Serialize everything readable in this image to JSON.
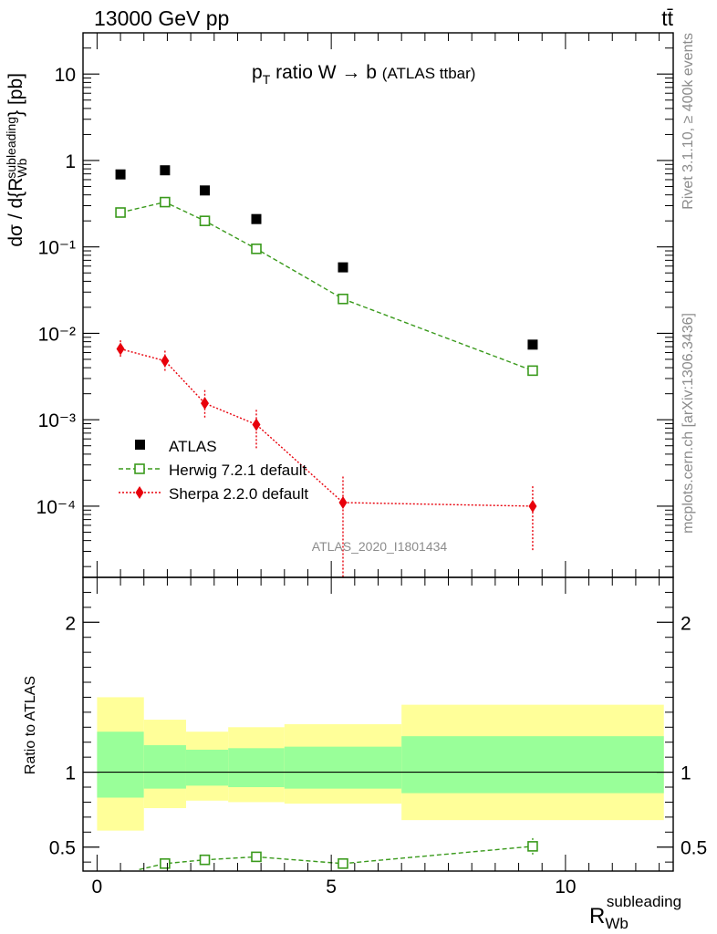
{
  "header": {
    "left": "13000 GeV pp",
    "right": "tt̄"
  },
  "side": {
    "rivet": "Rivet 3.1.10, ≥ 400k events",
    "mcplots": "mcplots.cern.ch [arXiv:1306.3436]"
  },
  "colors": {
    "atlas": "#000000",
    "herwig": "#3a9a1c",
    "sherpa": "#e8000b",
    "band_inner": "#99ff99",
    "band_outer": "#ffff99"
  },
  "chart_data": [
    {
      "type": "scatter",
      "title": "p_T ratio W → b (ATLAS ttbar)",
      "ylabel": "dσ / d{R_Wb^subleading} [pb]",
      "yscale": "log",
      "ylim": [
        1.5e-05,
        30
      ],
      "xlim": [
        -0.3,
        12.3
      ],
      "watermark": "ATLAS_2020_I1801434",
      "y_tick_labels": [
        "10",
        "1",
        "10⁻¹",
        "10⁻²",
        "10⁻³",
        "10⁻⁴"
      ],
      "legend_position": "bottom-left",
      "series": [
        {
          "name": "ATLAS",
          "marker": "filled-square",
          "x": [
            0.5,
            1.45,
            2.3,
            3.4,
            5.25,
            9.3
          ],
          "y": [
            0.69,
            0.77,
            0.45,
            0.21,
            0.058,
            0.0074
          ]
        },
        {
          "name": "Herwig 7.2.1 default",
          "marker": "open-square",
          "line": "dashed",
          "x": [
            0.5,
            1.45,
            2.3,
            3.4,
            5.25,
            9.3
          ],
          "y": [
            0.25,
            0.33,
            0.2,
            0.095,
            0.025,
            0.0037
          ]
        },
        {
          "name": "Sherpa 2.2.0 default",
          "marker": "filled-diamond",
          "line": "dotted",
          "x": [
            0.5,
            1.45,
            2.3,
            3.4,
            5.25,
            9.3
          ],
          "y": [
            0.0066,
            0.0048,
            0.00155,
            0.00088,
            0.00011,
            0.0001
          ],
          "yerr_low": [
            0.0052,
            0.0036,
            0.00105,
            0.00045,
            1.5e-05,
            3e-05
          ],
          "yerr_high": [
            0.0083,
            0.0063,
            0.0022,
            0.0013,
            0.00022,
            0.00017
          ]
        }
      ]
    },
    {
      "type": "scatter",
      "ylabel": "Ratio to ATLAS",
      "xlabel": "R_Wb^subleading",
      "ylim": [
        0.34,
        2.3
      ],
      "xlim": [
        -0.3,
        12.3
      ],
      "x_ticks": [
        0,
        5,
        10
      ],
      "y_ticks": [
        0.5,
        1,
        2
      ],
      "bands": {
        "edges": [
          0,
          1,
          1.9,
          2.8,
          4.0,
          6.5,
          12.1
        ],
        "outer_low": [
          0.61,
          0.76,
          0.81,
          0.8,
          0.79,
          0.68
        ],
        "outer_high": [
          1.5,
          1.35,
          1.27,
          1.3,
          1.32,
          1.45
        ],
        "inner_low": [
          0.83,
          0.89,
          0.91,
          0.9,
          0.89,
          0.86
        ],
        "inner_high": [
          1.27,
          1.18,
          1.15,
          1.16,
          1.17,
          1.24
        ]
      },
      "series": [
        {
          "name": "Herwig 7.2.1 default",
          "x": [
            0.9,
            1.45,
            2.3,
            3.4,
            5.25,
            9.3
          ],
          "y": [
            0.35,
            0.39,
            0.415,
            0.435,
            0.39,
            0.505
          ],
          "yerr_low": [
            0.35,
            0.385,
            0.41,
            0.425,
            0.37,
            0.45
          ],
          "yerr_high": [
            0.35,
            0.395,
            0.42,
            0.445,
            0.41,
            0.56
          ]
        }
      ]
    }
  ]
}
